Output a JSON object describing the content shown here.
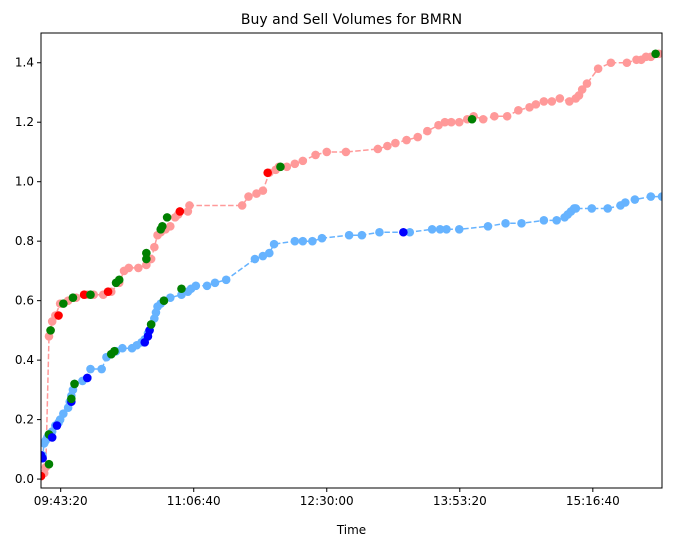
{
  "chart_data": {
    "type": "line",
    "title": "Buy and Sell Volumes for BMRN",
    "xlabel": "Time",
    "ylabel": "",
    "xlim": [
      "09:31:00",
      "16:00:00"
    ],
    "ylim": [
      -0.03,
      1.5
    ],
    "grid": false,
    "x_ticks": [
      "09:43:20",
      "11:06:40",
      "12:30:00",
      "13:53:20",
      "15:16:40"
    ],
    "y_ticks": [
      "0.0",
      "0.2",
      "0.4",
      "0.6",
      "0.8",
      "1.0",
      "1.2",
      "1.4"
    ],
    "colors": {
      "sell_line": "#ff9999",
      "buy_line": "#66b3ff",
      "sell_highlight": "#ff0000",
      "buy_highlight": "#0000ff",
      "both_marker": "#008000"
    },
    "series": [
      {
        "line_color": "#ff9999",
        "points": [
          [
            "09:31:00",
            0.01
          ],
          [
            "09:33:00",
            0.02
          ],
          [
            "09:34:00",
            0.04
          ],
          [
            "09:36:00",
            0.48
          ],
          [
            "09:37:00",
            0.5
          ],
          [
            "09:38:00",
            0.53
          ],
          [
            "09:40:00",
            0.55
          ],
          [
            "09:43:00",
            0.59
          ],
          [
            "09:48:00",
            0.6
          ],
          [
            "09:53:00",
            0.61
          ],
          [
            "10:00:00",
            0.62
          ],
          [
            "10:04:00",
            0.62
          ],
          [
            "10:10:00",
            0.62
          ],
          [
            "10:15:00",
            0.63
          ],
          [
            "10:20:00",
            0.66
          ],
          [
            "10:23:00",
            0.7
          ],
          [
            "10:26:00",
            0.71
          ],
          [
            "10:32:00",
            0.71
          ],
          [
            "10:37:00",
            0.72
          ],
          [
            "10:40:00",
            0.74
          ],
          [
            "10:42:00",
            0.78
          ],
          [
            "10:44:00",
            0.82
          ],
          [
            "10:46:00",
            0.83
          ],
          [
            "10:49:00",
            0.84
          ],
          [
            "10:52:00",
            0.85
          ],
          [
            "10:55:00",
            0.88
          ],
          [
            "10:57:00",
            0.89
          ],
          [
            "11:03:00",
            0.9
          ],
          [
            "11:04:00",
            0.92
          ],
          [
            "11:37:00",
            0.92
          ],
          [
            "11:41:00",
            0.95
          ],
          [
            "11:46:00",
            0.96
          ],
          [
            "11:50:00",
            0.97
          ],
          [
            "11:54:00",
            1.03
          ],
          [
            "11:58:00",
            1.04
          ],
          [
            "12:00:00",
            1.05
          ],
          [
            "12:05:00",
            1.05
          ],
          [
            "12:10:00",
            1.06
          ],
          [
            "12:15:00",
            1.07
          ],
          [
            "12:23:00",
            1.09
          ],
          [
            "12:30:00",
            1.1
          ],
          [
            "12:42:00",
            1.1
          ],
          [
            "13:02:00",
            1.11
          ],
          [
            "13:08:00",
            1.12
          ],
          [
            "13:13:00",
            1.13
          ],
          [
            "13:20:00",
            1.14
          ],
          [
            "13:27:00",
            1.15
          ],
          [
            "13:33:00",
            1.17
          ],
          [
            "13:40:00",
            1.19
          ],
          [
            "13:44:00",
            1.2
          ],
          [
            "13:48:00",
            1.2
          ],
          [
            "13:53:00",
            1.2
          ],
          [
            "13:58:00",
            1.21
          ],
          [
            "14:02:00",
            1.22
          ],
          [
            "14:08:00",
            1.21
          ],
          [
            "14:15:00",
            1.22
          ],
          [
            "14:23:00",
            1.22
          ],
          [
            "14:30:00",
            1.24
          ],
          [
            "14:37:00",
            1.25
          ],
          [
            "14:41:00",
            1.26
          ],
          [
            "14:46:00",
            1.27
          ],
          [
            "14:51:00",
            1.27
          ],
          [
            "14:56:00",
            1.28
          ],
          [
            "15:02:00",
            1.27
          ],
          [
            "15:06:00",
            1.28
          ],
          [
            "15:08:00",
            1.29
          ],
          [
            "15:10:00",
            1.31
          ],
          [
            "15:13:00",
            1.33
          ],
          [
            "15:20:00",
            1.38
          ],
          [
            "15:28:00",
            1.4
          ],
          [
            "15:38:00",
            1.4
          ],
          [
            "15:44:00",
            1.41
          ],
          [
            "15:47:00",
            1.41
          ],
          [
            "15:50:00",
            1.42
          ],
          [
            "15:53:00",
            1.42
          ],
          [
            "15:58:00",
            1.43
          ]
        ]
      },
      {
        "line_color": "#66b3ff",
        "points": [
          [
            "09:31:00",
            0.07
          ],
          [
            "09:32:00",
            0.08
          ],
          [
            "09:33:00",
            0.12
          ],
          [
            "09:34:00",
            0.13
          ],
          [
            "09:35:00",
            0.14
          ],
          [
            "09:36:00",
            0.15
          ],
          [
            "09:38:00",
            0.16
          ],
          [
            "09:40:00",
            0.18
          ],
          [
            "09:42:00",
            0.19
          ],
          [
            "09:43:00",
            0.2
          ],
          [
            "09:45:00",
            0.22
          ],
          [
            "09:48:00",
            0.24
          ],
          [
            "09:49:00",
            0.26
          ],
          [
            "09:50:00",
            0.28
          ],
          [
            "09:51:00",
            0.3
          ],
          [
            "09:52:00",
            0.32
          ],
          [
            "09:57:00",
            0.33
          ],
          [
            "10:00:00",
            0.34
          ],
          [
            "10:02:00",
            0.37
          ],
          [
            "10:09:00",
            0.37
          ],
          [
            "10:12:00",
            0.41
          ],
          [
            "10:15:00",
            0.42
          ],
          [
            "10:18:00",
            0.43
          ],
          [
            "10:22:00",
            0.44
          ],
          [
            "10:28:00",
            0.44
          ],
          [
            "10:31:00",
            0.45
          ],
          [
            "10:34:00",
            0.46
          ],
          [
            "10:36:00",
            0.47
          ],
          [
            "10:38:00",
            0.49
          ],
          [
            "10:39:00",
            0.5
          ],
          [
            "10:40:00",
            0.52
          ],
          [
            "10:42:00",
            0.54
          ],
          [
            "10:43:00",
            0.56
          ],
          [
            "10:44:00",
            0.58
          ],
          [
            "10:46:00",
            0.59
          ],
          [
            "10:48:00",
            0.6
          ],
          [
            "10:52:00",
            0.61
          ],
          [
            "10:59:00",
            0.62
          ],
          [
            "11:03:00",
            0.63
          ],
          [
            "11:05:00",
            0.64
          ],
          [
            "11:08:00",
            0.65
          ],
          [
            "11:15:00",
            0.65
          ],
          [
            "11:20:00",
            0.66
          ],
          [
            "11:27:00",
            0.67
          ],
          [
            "11:45:00",
            0.74
          ],
          [
            "11:50:00",
            0.75
          ],
          [
            "11:54:00",
            0.76
          ],
          [
            "11:57:00",
            0.79
          ],
          [
            "12:10:00",
            0.8
          ],
          [
            "12:15:00",
            0.8
          ],
          [
            "12:21:00",
            0.8
          ],
          [
            "12:27:00",
            0.81
          ],
          [
            "12:44:00",
            0.82
          ],
          [
            "12:52:00",
            0.82
          ],
          [
            "13:03:00",
            0.83
          ],
          [
            "13:22:00",
            0.83
          ],
          [
            "13:36:00",
            0.84
          ],
          [
            "13:41:00",
            0.84
          ],
          [
            "13:45:00",
            0.84
          ],
          [
            "13:53:00",
            0.84
          ],
          [
            "14:11:00",
            0.85
          ],
          [
            "14:22:00",
            0.86
          ],
          [
            "14:32:00",
            0.86
          ],
          [
            "14:46:00",
            0.87
          ],
          [
            "14:54:00",
            0.87
          ],
          [
            "14:59:00",
            0.88
          ],
          [
            "15:01:00",
            0.89
          ],
          [
            "15:03:00",
            0.9
          ],
          [
            "15:05:00",
            0.91
          ],
          [
            "15:06:00",
            0.91
          ],
          [
            "15:16:00",
            0.91
          ],
          [
            "15:26:00",
            0.91
          ],
          [
            "15:34:00",
            0.92
          ],
          [
            "15:37:00",
            0.93
          ],
          [
            "15:43:00",
            0.94
          ],
          [
            "15:53:00",
            0.95
          ],
          [
            "16:00:00",
            0.95
          ]
        ]
      }
    ],
    "highlight_markers": [
      {
        "time": "09:31:00",
        "value": 0.01,
        "color": "#ff0000"
      },
      {
        "time": "09:31:00",
        "value": 0.08,
        "color": "#0000ff"
      },
      {
        "time": "09:32:00",
        "value": 0.07,
        "color": "#0000ff"
      },
      {
        "time": "09:36:00",
        "value": 0.05,
        "color": "#008000"
      },
      {
        "time": "09:36:00",
        "value": 0.15,
        "color": "#008000"
      },
      {
        "time": "09:37:00",
        "value": 0.5,
        "color": "#008000"
      },
      {
        "time": "09:38:00",
        "value": 0.14,
        "color": "#0000ff"
      },
      {
        "time": "09:41:00",
        "value": 0.18,
        "color": "#0000ff"
      },
      {
        "time": "09:42:00",
        "value": 0.55,
        "color": "#ff0000"
      },
      {
        "time": "09:45:00",
        "value": 0.59,
        "color": "#008000"
      },
      {
        "time": "09:50:00",
        "value": 0.26,
        "color": "#0000ff"
      },
      {
        "time": "09:50:00",
        "value": 0.27,
        "color": "#008000"
      },
      {
        "time": "09:51:00",
        "value": 0.61,
        "color": "#008000"
      },
      {
        "time": "09:52:00",
        "value": 0.32,
        "color": "#008000"
      },
      {
        "time": "09:58:00",
        "value": 0.62,
        "color": "#ff0000"
      },
      {
        "time": "10:00:00",
        "value": 0.34,
        "color": "#0000ff"
      },
      {
        "time": "10:02:00",
        "value": 0.62,
        "color": "#008000"
      },
      {
        "time": "10:13:00",
        "value": 0.63,
        "color": "#ff0000"
      },
      {
        "time": "10:15:00",
        "value": 0.42,
        "color": "#008000"
      },
      {
        "time": "10:17:00",
        "value": 0.43,
        "color": "#008000"
      },
      {
        "time": "10:18:00",
        "value": 0.66,
        "color": "#008000"
      },
      {
        "time": "10:20:00",
        "value": 0.67,
        "color": "#008000"
      },
      {
        "time": "10:36:00",
        "value": 0.46,
        "color": "#0000ff"
      },
      {
        "time": "10:37:00",
        "value": 0.74,
        "color": "#008000"
      },
      {
        "time": "10:37:00",
        "value": 0.76,
        "color": "#008000"
      },
      {
        "time": "10:38:00",
        "value": 0.48,
        "color": "#0000ff"
      },
      {
        "time": "10:39:00",
        "value": 0.5,
        "color": "#0000ff"
      },
      {
        "time": "10:40:00",
        "value": 0.52,
        "color": "#008000"
      },
      {
        "time": "10:46:00",
        "value": 0.84,
        "color": "#008000"
      },
      {
        "time": "10:47:00",
        "value": 0.85,
        "color": "#008000"
      },
      {
        "time": "10:48:00",
        "value": 0.6,
        "color": "#008000"
      },
      {
        "time": "10:50:00",
        "value": 0.88,
        "color": "#008000"
      },
      {
        "time": "10:58:00",
        "value": 0.9,
        "color": "#ff0000"
      },
      {
        "time": "10:59:00",
        "value": 0.64,
        "color": "#008000"
      },
      {
        "time": "11:53:00",
        "value": 1.03,
        "color": "#ff0000"
      },
      {
        "time": "12:01:00",
        "value": 1.05,
        "color": "#008000"
      },
      {
        "time": "13:18:00",
        "value": 0.83,
        "color": "#0000ff"
      },
      {
        "time": "14:01:00",
        "value": 1.21,
        "color": "#008000"
      },
      {
        "time": "15:56:00",
        "value": 1.43,
        "color": "#008000"
      }
    ]
  }
}
